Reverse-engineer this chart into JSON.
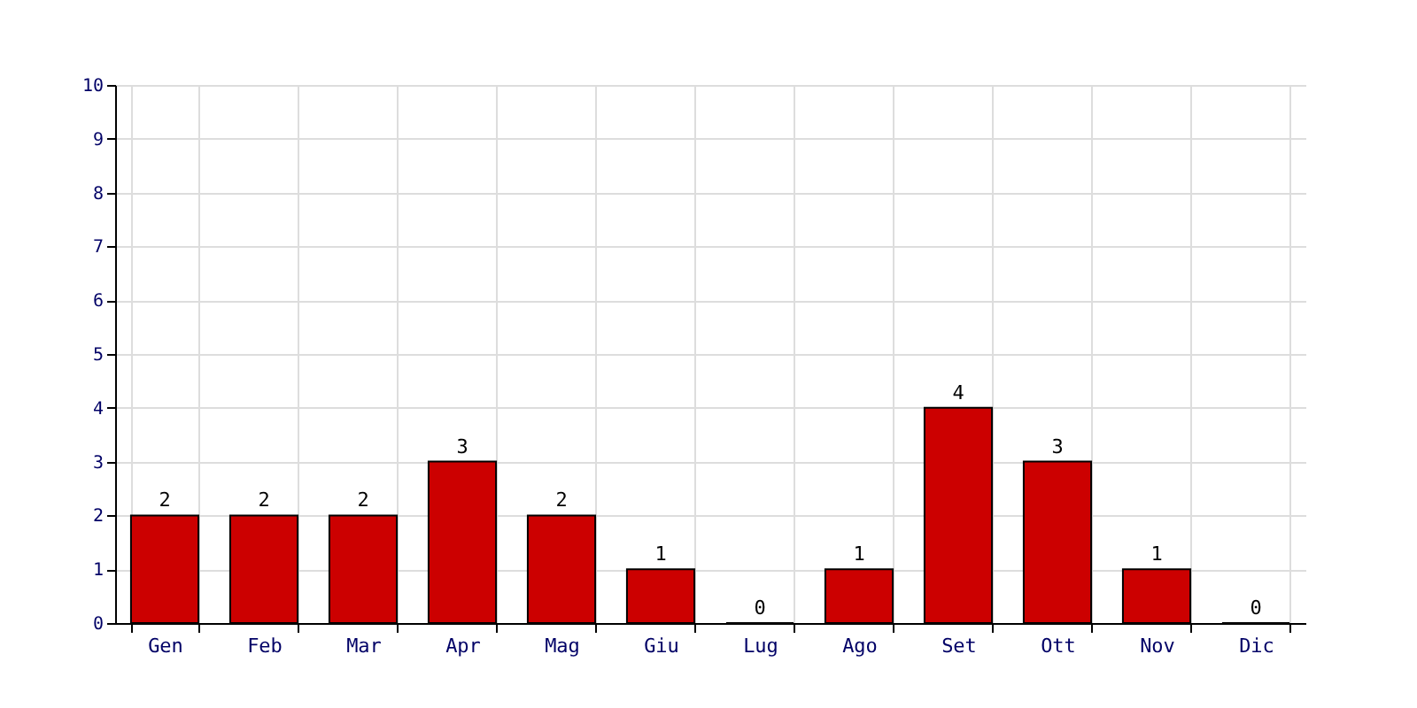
{
  "chart_data": {
    "type": "bar",
    "categories": [
      "Gen",
      "Feb",
      "Mar",
      "Apr",
      "Mag",
      "Giu",
      "Lug",
      "Ago",
      "Set",
      "Ott",
      "Nov",
      "Dic"
    ],
    "values": [
      2,
      2,
      2,
      3,
      2,
      1,
      0,
      1,
      4,
      3,
      1,
      0
    ],
    "color": "#cc0000",
    "ylim": [
      0,
      10
    ],
    "yticks": [
      0,
      1,
      2,
      3,
      4,
      5,
      6,
      7,
      8,
      9,
      10
    ],
    "grid": true,
    "data_labels": true
  }
}
